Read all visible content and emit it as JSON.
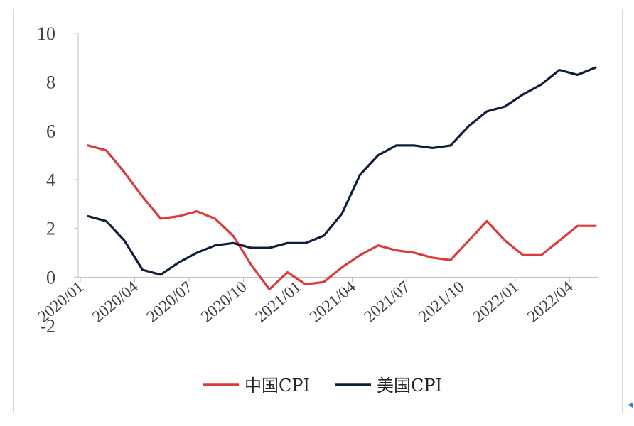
{
  "chart_data": {
    "type": "line",
    "x": [
      "2020/01",
      "2020/02",
      "2020/03",
      "2020/04",
      "2020/05",
      "2020/06",
      "2020/07",
      "2020/08",
      "2020/09",
      "2020/10",
      "2020/11",
      "2020/12",
      "2021/01",
      "2021/02",
      "2021/03",
      "2021/04",
      "2021/05",
      "2021/06",
      "2021/07",
      "2021/08",
      "2021/09",
      "2021/10",
      "2021/11",
      "2021/12",
      "2022/01",
      "2022/02",
      "2022/03",
      "2022/04",
      "2022/05"
    ],
    "xtick_labels": [
      "2020/01",
      "2020/04",
      "2020/07",
      "2020/10",
      "2021/01",
      "2021/04",
      "2021/07",
      "2021/10",
      "2022/01",
      "2022/04"
    ],
    "ylim": [
      -2,
      10
    ],
    "yticks": [
      -2,
      0,
      2,
      4,
      6,
      8,
      10
    ],
    "series": [
      {
        "name": "中国CPI",
        "color": "#d93c3c",
        "values": [
          5.4,
          5.2,
          4.3,
          3.3,
          2.4,
          2.5,
          2.7,
          2.4,
          1.7,
          0.5,
          -0.5,
          0.2,
          -0.3,
          -0.2,
          0.4,
          0.9,
          1.3,
          1.1,
          1.0,
          0.8,
          0.7,
          1.5,
          2.3,
          1.5,
          0.9,
          0.9,
          1.5,
          2.1,
          2.1
        ]
      },
      {
        "name": "美国CPI",
        "color": "#0f1e3c",
        "values": [
          2.5,
          2.3,
          1.5,
          0.3,
          0.1,
          0.6,
          1.0,
          1.3,
          1.4,
          1.2,
          1.2,
          1.4,
          1.4,
          1.7,
          2.6,
          4.2,
          5.0,
          5.4,
          5.4,
          5.3,
          5.4,
          6.2,
          6.8,
          7.0,
          7.5,
          7.9,
          8.5,
          8.3,
          8.6
        ]
      }
    ],
    "grid": false,
    "legend": "bottom"
  },
  "style": {
    "axis_color": "#bfbfbf",
    "tick_color": "#404040",
    "corner_mark_color": "#4a7ebb"
  },
  "corner_mark": "◂"
}
